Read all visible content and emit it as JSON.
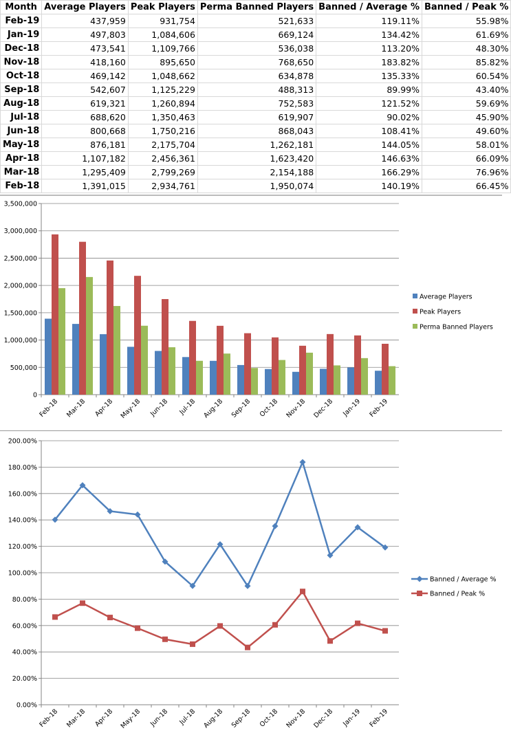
{
  "table": {
    "headers": [
      "Month",
      "Average Players",
      "Peak Players",
      "Perma Banned Players",
      "Banned / Average %",
      "Banned / Peak %"
    ],
    "rows": [
      [
        "Feb-19",
        "437,959",
        "931,754",
        "521,633",
        "119.11%",
        "55.98%"
      ],
      [
        "Jan-19",
        "497,803",
        "1,084,606",
        "669,124",
        "134.42%",
        "61.69%"
      ],
      [
        "Dec-18",
        "473,541",
        "1,109,766",
        "536,038",
        "113.20%",
        "48.30%"
      ],
      [
        "Nov-18",
        "418,160",
        "895,650",
        "768,650",
        "183.82%",
        "85.82%"
      ],
      [
        "Oct-18",
        "469,142",
        "1,048,662",
        "634,878",
        "135.33%",
        "60.54%"
      ],
      [
        "Sep-18",
        "542,607",
        "1,125,229",
        "488,313",
        "89.99%",
        "43.40%"
      ],
      [
        "Aug-18",
        "619,321",
        "1,260,894",
        "752,583",
        "121.52%",
        "59.69%"
      ],
      [
        "Jul-18",
        "688,620",
        "1,350,463",
        "619,907",
        "90.02%",
        "45.90%"
      ],
      [
        "Jun-18",
        "800,668",
        "1,750,216",
        "868,043",
        "108.41%",
        "49.60%"
      ],
      [
        "May-18",
        "876,181",
        "2,175,704",
        "1,262,181",
        "144.05%",
        "58.01%"
      ],
      [
        "Apr-18",
        "1,107,182",
        "2,456,361",
        "1,623,420",
        "146.63%",
        "66.09%"
      ],
      [
        "Mar-18",
        "1,295,409",
        "2,799,269",
        "2,154,188",
        "166.29%",
        "76.96%"
      ],
      [
        "Feb-18",
        "1,391,015",
        "2,934,761",
        "1,950,074",
        "140.19%",
        "66.45%"
      ]
    ]
  },
  "chart_data": [
    {
      "type": "bar",
      "categories": [
        "Feb-18",
        "Mar-18",
        "Apr-18",
        "May-18",
        "Jun-18",
        "Jul-18",
        "Aug-18",
        "Sep-18",
        "Oct-18",
        "Nov-18",
        "Dec-18",
        "Jan-19",
        "Feb-19"
      ],
      "ylim": [
        0,
        3500000
      ],
      "yticks": [
        "0",
        "500,000",
        "1,000,000",
        "1,500,000",
        "2,000,000",
        "2,500,000",
        "3,000,000",
        "3,500,000"
      ],
      "ystep": 500000,
      "grid": true,
      "legend": "right",
      "series": [
        {
          "name": "Average Players",
          "color": "#4f81bd",
          "values": [
            1391015,
            1295409,
            1107182,
            876181,
            800668,
            688620,
            619321,
            542607,
            469142,
            418160,
            473541,
            497803,
            437959
          ]
        },
        {
          "name": "Peak Players",
          "color": "#c0504d",
          "values": [
            2934761,
            2799269,
            2456361,
            2175704,
            1750216,
            1350463,
            1260894,
            1125229,
            1048662,
            895650,
            1109766,
            1084606,
            931754
          ]
        },
        {
          "name": "Perma Banned Players",
          "color": "#9bbb59",
          "values": [
            1950074,
            2154188,
            1623420,
            1262181,
            868043,
            619907,
            752583,
            488313,
            634878,
            768650,
            536038,
            669124,
            521633
          ]
        }
      ]
    },
    {
      "type": "line",
      "categories": [
        "Feb-18",
        "Mar-18",
        "Apr-18",
        "May-18",
        "Jun-18",
        "Jul-18",
        "Aug-18",
        "Sep-18",
        "Oct-18",
        "Nov-18",
        "Dec-18",
        "Jan-19",
        "Feb-19"
      ],
      "ylim": [
        0,
        200
      ],
      "yticks": [
        "0.00%",
        "20.00%",
        "40.00%",
        "60.00%",
        "80.00%",
        "100.00%",
        "120.00%",
        "140.00%",
        "160.00%",
        "180.00%",
        "200.00%"
      ],
      "ystep": 20,
      "grid": true,
      "legend": "right",
      "series": [
        {
          "name": "Banned / Average %",
          "color": "#4f81bd",
          "marker": "diamond",
          "values": [
            140.19,
            166.29,
            146.63,
            144.05,
            108.41,
            90.02,
            121.52,
            89.99,
            135.33,
            183.82,
            113.2,
            134.42,
            119.11
          ]
        },
        {
          "name": "Banned / Peak %",
          "color": "#c0504d",
          "marker": "square",
          "values": [
            66.45,
            76.96,
            66.09,
            58.01,
            49.6,
            45.9,
            59.69,
            43.4,
            60.54,
            85.82,
            48.3,
            61.69,
            55.98
          ]
        }
      ]
    }
  ]
}
